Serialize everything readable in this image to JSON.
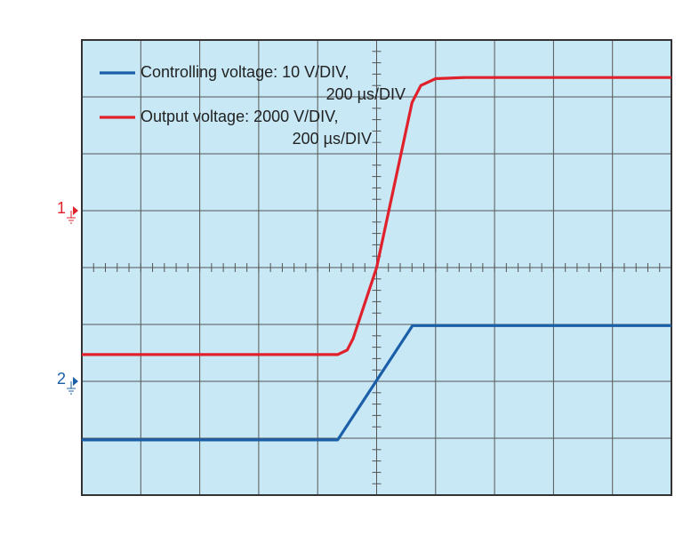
{
  "chart_data": {
    "type": "line",
    "xlim": [
      0,
      10
    ],
    "ylim": [
      -4,
      4
    ],
    "xticks": [
      0,
      1,
      2,
      3,
      4,
      5,
      6,
      7,
      8,
      9,
      10
    ],
    "yticks": [
      -4,
      -3,
      -2,
      -1,
      0,
      1,
      2,
      3,
      4
    ],
    "grid": true,
    "background": "#c8e8f6",
    "series": [
      {
        "name": "Controlling voltage: 10 V/DIV,",
        "name_cont": "200 µs/DIV",
        "color": "#1a5fa8",
        "x": [
          0,
          4.34,
          5.61,
          10
        ],
        "values": [
          -3.03,
          -3.03,
          -1.02,
          -1.02
        ],
        "marker": {
          "label": "2",
          "level": -2
        }
      },
      {
        "name": "Output voltage: 2000 V/DIV,",
        "name_cont": "200 µs/DIV",
        "color": "#e0202a",
        "x": [
          0,
          4.34,
          4.5,
          4.6,
          5.0,
          5.6,
          5.75,
          6.0,
          6.5,
          10
        ],
        "values": [
          -1.53,
          -1.53,
          -1.45,
          -1.25,
          0,
          2.9,
          3.2,
          3.32,
          3.34,
          3.34
        ],
        "marker": {
          "label": "1",
          "level": 1
        }
      }
    ]
  }
}
